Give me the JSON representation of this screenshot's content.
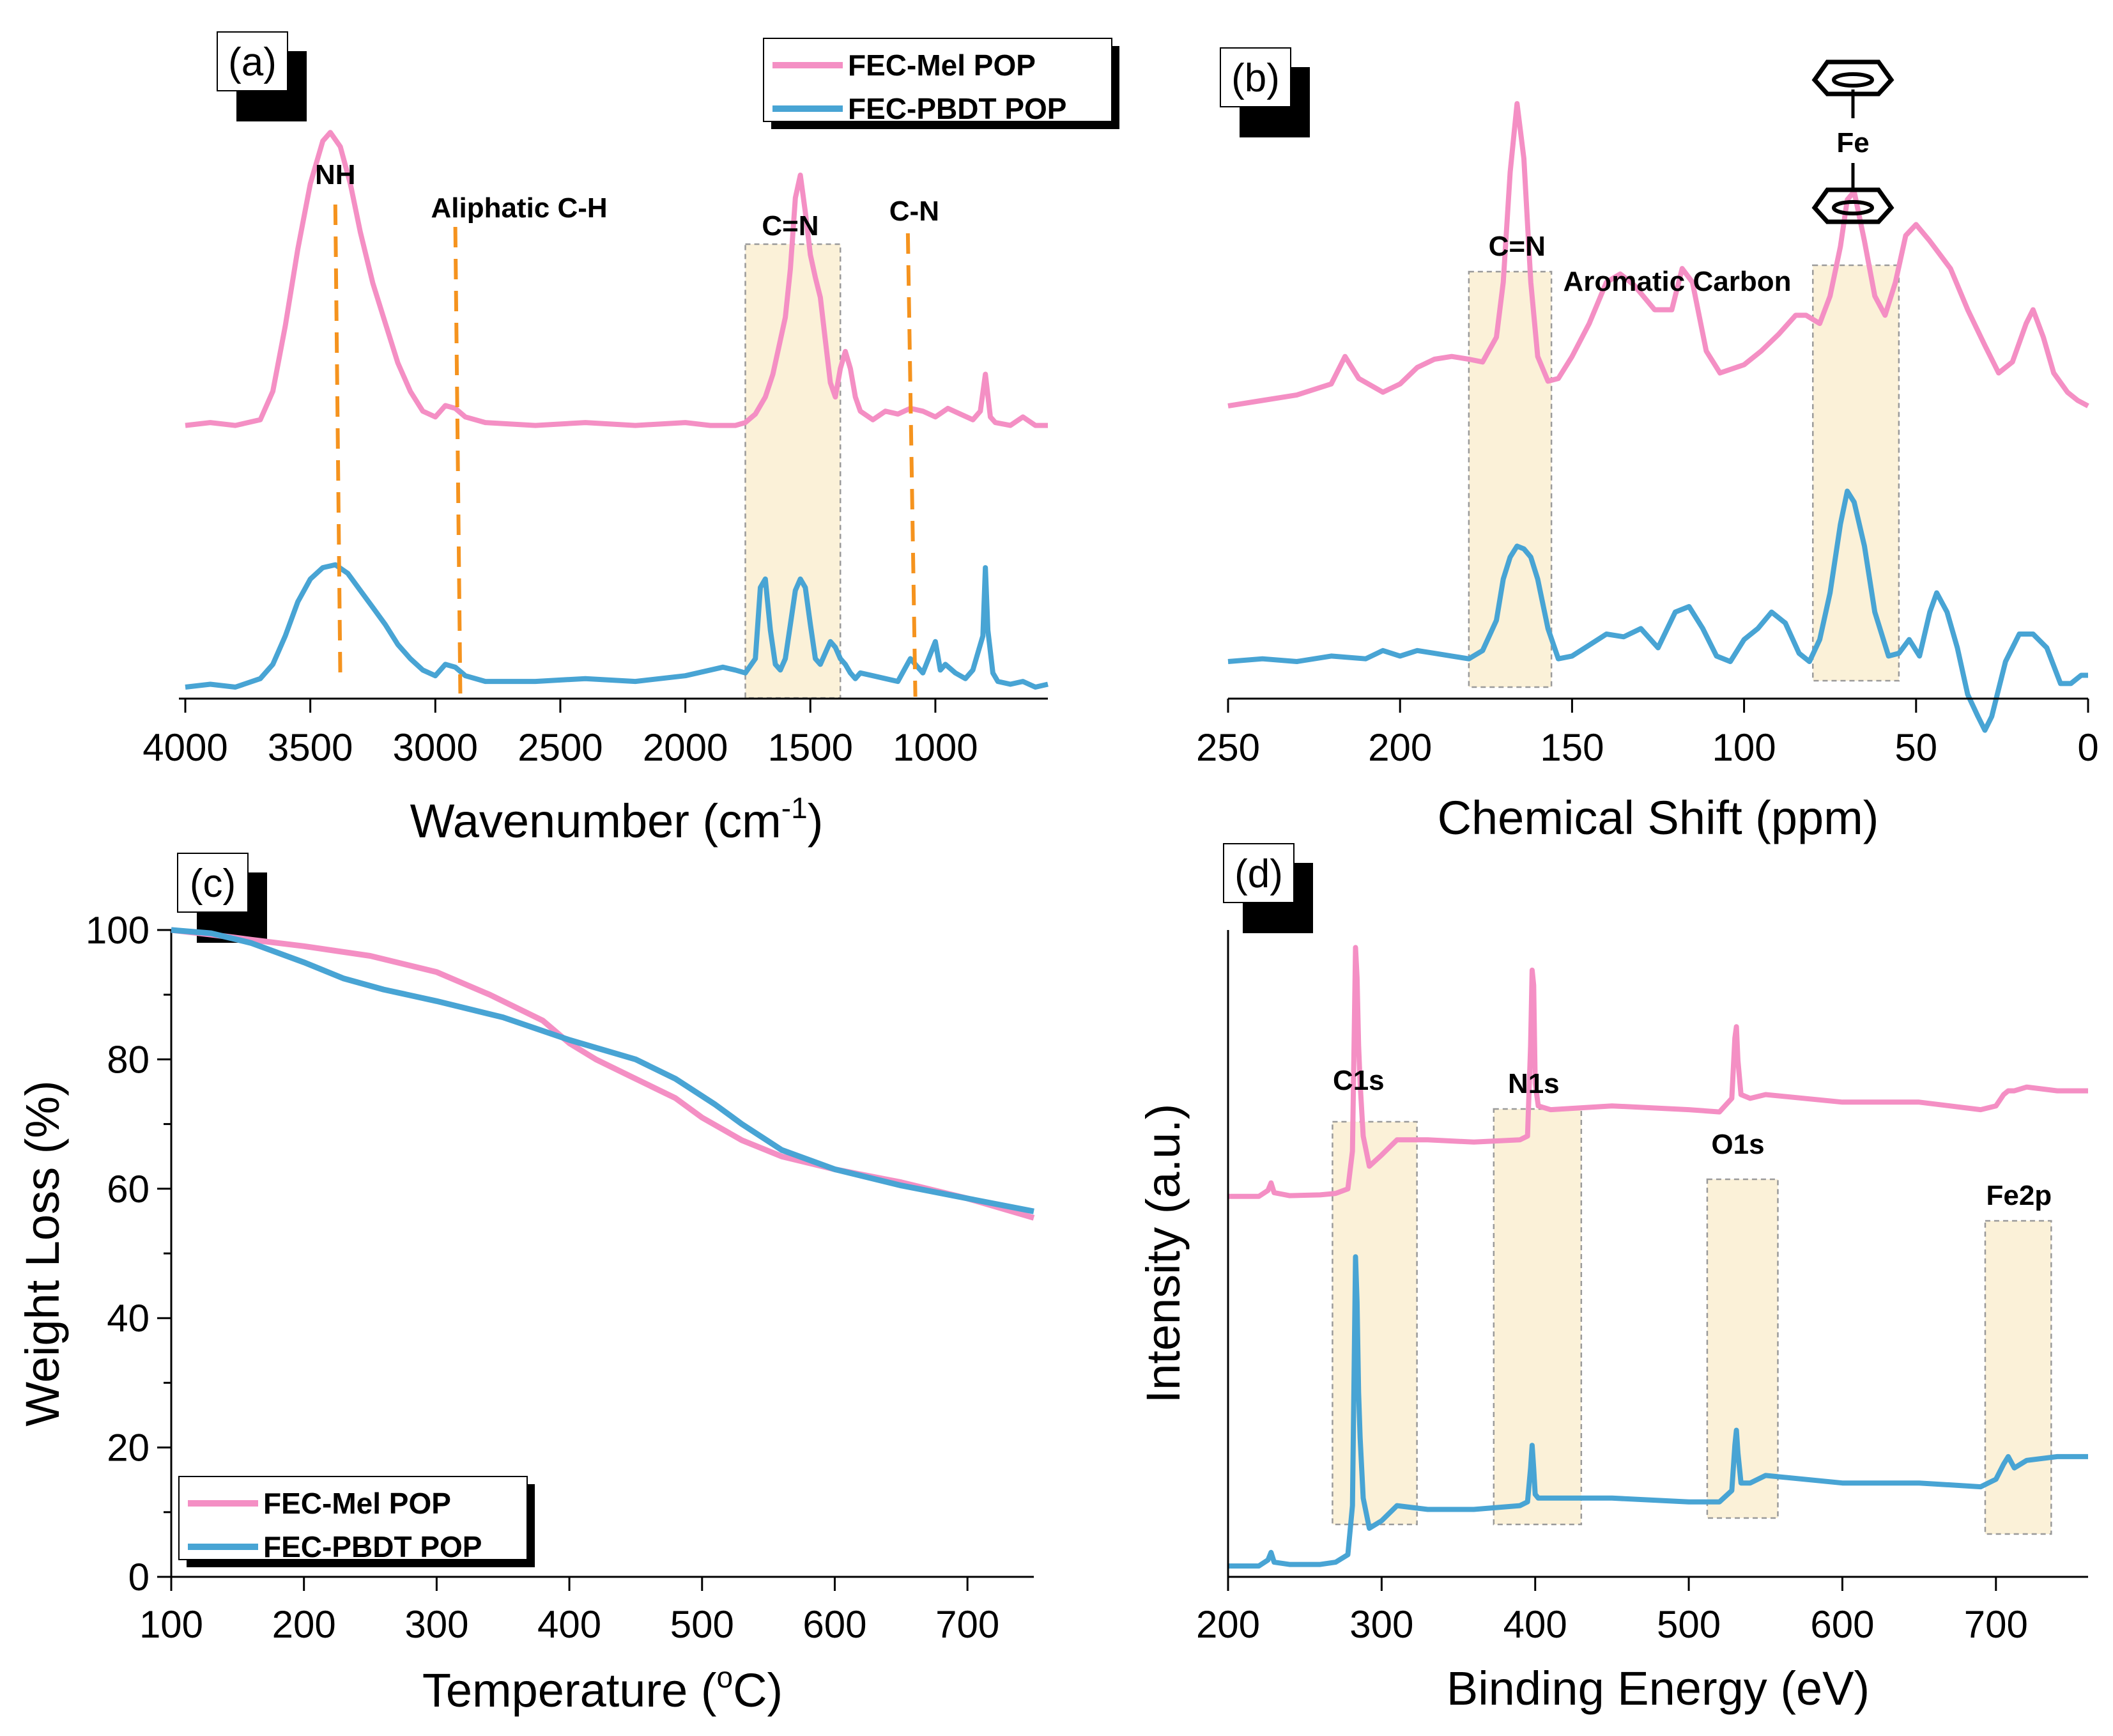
{
  "colors": {
    "mel": "#f48fc4",
    "pbdt": "#48a4d4",
    "box_fill": "#fbf1d8",
    "box_edge": "#9a9a9a",
    "ref_line": "#f5931e"
  },
  "panel_labels": [
    "(a)",
    "(b)",
    "(c)",
    "(d)"
  ],
  "legend": {
    "series": [
      "FEC-Mel POP",
      "FEC-PBDT POP"
    ]
  },
  "ferrocene": {
    "atom": "Fe",
    "icon": "ferrocene-structure-icon"
  },
  "chart_data": [
    {
      "panel": "(a)",
      "type": "line",
      "xlabel": "Wavenumber (cm",
      "xlabel_sup": "-1",
      "xlabel_end": ")",
      "ylabel": "",
      "xlim": [
        4000,
        550
      ],
      "x_ticks": [
        4000,
        3500,
        3000,
        2500,
        2000,
        1500,
        1000
      ],
      "y_ticks": [],
      "legend_position": "top-right",
      "annotations": [
        {
          "text": "NH",
          "x": 3400
        },
        {
          "text": "Aliphatic C-H",
          "x": 2920
        },
        {
          "text": "C=N",
          "x": 1580
        },
        {
          "text": "C-N",
          "x": 1110
        }
      ],
      "highlight_regions": [
        [
          1760,
          1380
        ]
      ],
      "series": [
        {
          "name": "FEC-Mel POP",
          "offset": 1.0,
          "x": [
            4000,
            3900,
            3800,
            3700,
            3650,
            3600,
            3550,
            3500,
            3450,
            3420,
            3380,
            3340,
            3300,
            3250,
            3200,
            3150,
            3100,
            3050,
            3000,
            2960,
            2920,
            2880,
            2800,
            2600,
            2400,
            2200,
            2000,
            1900,
            1800,
            1760,
            1720,
            1680,
            1650,
            1620,
            1600,
            1580,
            1560,
            1540,
            1520,
            1500,
            1480,
            1460,
            1440,
            1420,
            1400,
            1380,
            1360,
            1340,
            1320,
            1300,
            1250,
            1200,
            1150,
            1100,
            1050,
            1000,
            950,
            900,
            850,
            820,
            800,
            780,
            760,
            700,
            650,
            600,
            550
          ],
          "y": [
            0.0,
            0.01,
            0.0,
            0.02,
            0.12,
            0.35,
            0.62,
            0.85,
            1.0,
            1.03,
            0.98,
            0.85,
            0.68,
            0.5,
            0.36,
            0.22,
            0.12,
            0.05,
            0.03,
            0.07,
            0.06,
            0.03,
            0.01,
            0.0,
            0.01,
            0.0,
            0.01,
            0.0,
            0.0,
            0.01,
            0.04,
            0.1,
            0.18,
            0.3,
            0.38,
            0.55,
            0.8,
            0.88,
            0.75,
            0.6,
            0.52,
            0.45,
            0.3,
            0.15,
            0.1,
            0.2,
            0.26,
            0.2,
            0.1,
            0.05,
            0.02,
            0.05,
            0.04,
            0.06,
            0.05,
            0.03,
            0.06,
            0.04,
            0.02,
            0.05,
            0.18,
            0.03,
            0.01,
            0.0,
            0.03,
            0.0,
            0.0
          ]
        },
        {
          "name": "FEC-PBDT POP",
          "offset": 0.0,
          "x": [
            4000,
            3900,
            3800,
            3700,
            3650,
            3600,
            3550,
            3500,
            3450,
            3400,
            3350,
            3300,
            3250,
            3200,
            3150,
            3100,
            3050,
            3000,
            2960,
            2920,
            2880,
            2800,
            2600,
            2400,
            2200,
            2000,
            1900,
            1850,
            1800,
            1760,
            1720,
            1700,
            1680,
            1660,
            1640,
            1620,
            1600,
            1580,
            1560,
            1540,
            1520,
            1500,
            1480,
            1460,
            1440,
            1420,
            1400,
            1380,
            1360,
            1340,
            1320,
            1300,
            1250,
            1200,
            1150,
            1100,
            1050,
            1000,
            980,
            960,
            920,
            880,
            850,
            830,
            810,
            800,
            790,
            770,
            750,
            700,
            650,
            600,
            550
          ],
          "y": [
            0.0,
            0.01,
            0.0,
            0.03,
            0.08,
            0.18,
            0.3,
            0.38,
            0.42,
            0.43,
            0.4,
            0.34,
            0.28,
            0.22,
            0.15,
            0.1,
            0.06,
            0.04,
            0.08,
            0.07,
            0.04,
            0.02,
            0.02,
            0.03,
            0.02,
            0.04,
            0.06,
            0.07,
            0.06,
            0.05,
            0.1,
            0.35,
            0.38,
            0.2,
            0.08,
            0.06,
            0.1,
            0.22,
            0.34,
            0.38,
            0.35,
            0.22,
            0.1,
            0.08,
            0.12,
            0.16,
            0.14,
            0.1,
            0.08,
            0.05,
            0.03,
            0.05,
            0.04,
            0.03,
            0.02,
            0.1,
            0.05,
            0.16,
            0.06,
            0.08,
            0.05,
            0.03,
            0.06,
            0.12,
            0.18,
            0.42,
            0.2,
            0.05,
            0.02,
            0.01,
            0.02,
            0.0,
            0.01
          ]
        }
      ]
    },
    {
      "panel": "(b)",
      "type": "line",
      "xlabel": "Chemical Shift (ppm)",
      "ylabel": "",
      "xlim": [
        250,
        0
      ],
      "x_ticks": [
        250,
        200,
        150,
        100,
        50,
        0
      ],
      "y_ticks": [],
      "annotations": [
        {
          "text": "C=N",
          "x": 166
        },
        {
          "text": "Aromatic Carbon",
          "x": 120
        }
      ],
      "highlight_regions": [
        [
          180,
          156
        ],
        [
          80,
          55
        ]
      ],
      "series": [
        {
          "name": "FEC-Mel POP",
          "offset": 1.0,
          "x": [
            250,
            240,
            230,
            220,
            216,
            212,
            205,
            200,
            195,
            190,
            185,
            180,
            176,
            172,
            170,
            168,
            166,
            164,
            162,
            160,
            157,
            154,
            150,
            145,
            140,
            136,
            132,
            126,
            121,
            118,
            115,
            111,
            107,
            100,
            95,
            90,
            85,
            82,
            78,
            75,
            72,
            70,
            68,
            65,
            62,
            59,
            56,
            53,
            50,
            46,
            40,
            35,
            30,
            26,
            22,
            18,
            16,
            13,
            10,
            6,
            3,
            0
          ],
          "y": [
            0.0,
            0.02,
            0.04,
            0.08,
            0.18,
            0.1,
            0.05,
            0.08,
            0.14,
            0.17,
            0.18,
            0.17,
            0.16,
            0.25,
            0.45,
            0.85,
            1.1,
            0.9,
            0.45,
            0.18,
            0.09,
            0.1,
            0.18,
            0.3,
            0.45,
            0.48,
            0.44,
            0.35,
            0.35,
            0.5,
            0.45,
            0.2,
            0.12,
            0.15,
            0.2,
            0.26,
            0.33,
            0.33,
            0.3,
            0.4,
            0.58,
            0.75,
            0.78,
            0.6,
            0.4,
            0.33,
            0.45,
            0.62,
            0.66,
            0.6,
            0.5,
            0.35,
            0.22,
            0.12,
            0.16,
            0.3,
            0.35,
            0.25,
            0.12,
            0.05,
            0.02,
            0.0
          ]
        },
        {
          "name": "FEC-PBDT POP",
          "offset": 0.0,
          "x": [
            250,
            240,
            230,
            220,
            210,
            205,
            200,
            195,
            190,
            185,
            180,
            176,
            172,
            170,
            168,
            166,
            164,
            162,
            160,
            157,
            154,
            150,
            145,
            140,
            135,
            130,
            125,
            120,
            116,
            112,
            108,
            104,
            100,
            96,
            92,
            88,
            84,
            81,
            78,
            75,
            72,
            70,
            68,
            65,
            62,
            58,
            55,
            52,
            49,
            46,
            44,
            41,
            38,
            35,
            32,
            30,
            28,
            24,
            20,
            16,
            12,
            8,
            5,
            2,
            0
          ],
          "y": [
            0.0,
            0.01,
            0.0,
            0.02,
            0.01,
            0.04,
            0.02,
            0.04,
            0.03,
            0.02,
            0.01,
            0.04,
            0.15,
            0.3,
            0.38,
            0.42,
            0.41,
            0.38,
            0.3,
            0.12,
            0.01,
            0.02,
            0.06,
            0.1,
            0.09,
            0.12,
            0.05,
            0.18,
            0.2,
            0.12,
            0.02,
            0.0,
            0.08,
            0.12,
            0.18,
            0.14,
            0.03,
            0.0,
            0.08,
            0.25,
            0.5,
            0.62,
            0.58,
            0.42,
            0.18,
            0.02,
            0.03,
            0.08,
            0.02,
            0.18,
            0.25,
            0.18,
            0.05,
            -0.12,
            -0.2,
            -0.25,
            -0.2,
            0.0,
            0.1,
            0.1,
            0.05,
            -0.08,
            -0.08,
            -0.05,
            -0.05
          ]
        }
      ]
    },
    {
      "panel": "(c)",
      "type": "line",
      "xlabel": "Temperature (",
      "xlabel_sup": "o",
      "xlabel_end": "C)",
      "ylabel": "Weight Loss (%)",
      "xlim": [
        100,
        750
      ],
      "ylim": [
        0,
        100
      ],
      "x_ticks": [
        100,
        200,
        300,
        400,
        500,
        600,
        700
      ],
      "y_ticks": [
        0,
        20,
        40,
        60,
        80,
        100
      ],
      "legend_position": "bottom-left",
      "series": [
        {
          "name": "FEC-Mel POP",
          "x": [
            100,
            130,
            160,
            200,
            250,
            300,
            340,
            380,
            400,
            420,
            450,
            480,
            500,
            530,
            560,
            600,
            650,
            700,
            750
          ],
          "y": [
            100,
            99.3,
            98.5,
            97.5,
            96,
            93.5,
            90,
            86,
            82.5,
            80,
            77,
            74,
            71,
            67.5,
            65,
            63,
            61,
            58.5,
            55.5
          ]
        },
        {
          "name": "FEC-PBDT POP",
          "x": [
            100,
            130,
            160,
            200,
            230,
            260,
            300,
            350,
            400,
            450,
            480,
            510,
            530,
            560,
            600,
            650,
            700,
            750
          ],
          "y": [
            100,
            99.5,
            98,
            95,
            92.5,
            90.8,
            89,
            86.5,
            83,
            80,
            77,
            73,
            70,
            66,
            63,
            60.5,
            58.5,
            56.5
          ]
        }
      ]
    },
    {
      "panel": "(d)",
      "type": "line",
      "xlabel": "Binding Energy (eV)",
      "ylabel": "Intensity (a.u.)",
      "xlim": [
        200,
        760
      ],
      "x_ticks": [
        200,
        300,
        400,
        500,
        600,
        700
      ],
      "y_ticks": [],
      "annotations": [
        {
          "text": "C1s",
          "x": 285
        },
        {
          "text": "N1s",
          "x": 399
        },
        {
          "text": "O1s",
          "x": 532
        },
        {
          "text": "Fe2p",
          "x": 715
        }
      ],
      "highlight_regions": [
        [
          268,
          323
        ],
        [
          373,
          430
        ],
        [
          512,
          558
        ],
        [
          693,
          736
        ]
      ],
      "series": [
        {
          "name": "FEC-Mel POP",
          "offset": 4.9,
          "x": [
            200,
            220,
            226,
            228,
            230,
            240,
            260,
            270,
            278,
            281,
            283,
            284,
            285,
            286,
            288,
            292,
            300,
            310,
            330,
            360,
            390,
            395,
            397,
            398,
            399,
            400,
            402,
            410,
            450,
            500,
            520,
            528,
            530,
            531,
            532,
            534,
            540,
            550,
            600,
            650,
            690,
            700,
            705,
            708,
            712,
            720,
            740,
            760
          ],
          "y": [
            0.0,
            0.0,
            0.08,
            0.18,
            0.05,
            0.01,
            0.02,
            0.04,
            0.1,
            0.6,
            3.3,
            2.9,
            2.0,
            1.5,
            0.8,
            0.4,
            0.55,
            0.75,
            0.75,
            0.72,
            0.75,
            0.8,
            2.0,
            3.0,
            2.8,
            1.5,
            1.2,
            1.15,
            1.2,
            1.15,
            1.12,
            1.3,
            2.1,
            2.25,
            1.8,
            1.35,
            1.3,
            1.35,
            1.25,
            1.25,
            1.15,
            1.2,
            1.35,
            1.4,
            1.4,
            1.45,
            1.4,
            1.4
          ]
        },
        {
          "name": "FEC-PBDT POP",
          "offset": 0.0,
          "x": [
            200,
            220,
            226,
            228,
            230,
            240,
            260,
            270,
            278,
            281,
            283,
            284,
            285,
            286,
            288,
            292,
            300,
            310,
            330,
            360,
            390,
            395,
            397,
            398,
            399,
            400,
            402,
            410,
            450,
            500,
            520,
            528,
            530,
            531,
            532,
            534,
            540,
            550,
            600,
            650,
            690,
            700,
            705,
            708,
            712,
            720,
            740,
            760
          ],
          "y": [
            0.0,
            0.0,
            0.08,
            0.18,
            0.05,
            0.02,
            0.02,
            0.05,
            0.15,
            0.8,
            4.1,
            3.5,
            2.3,
            1.7,
            0.9,
            0.5,
            0.6,
            0.8,
            0.75,
            0.75,
            0.8,
            0.85,
            1.3,
            1.6,
            1.3,
            0.95,
            0.9,
            0.9,
            0.9,
            0.85,
            0.85,
            1.0,
            1.6,
            1.8,
            1.5,
            1.1,
            1.1,
            1.2,
            1.1,
            1.1,
            1.05,
            1.15,
            1.35,
            1.45,
            1.3,
            1.4,
            1.45,
            1.45
          ]
        }
      ]
    }
  ]
}
